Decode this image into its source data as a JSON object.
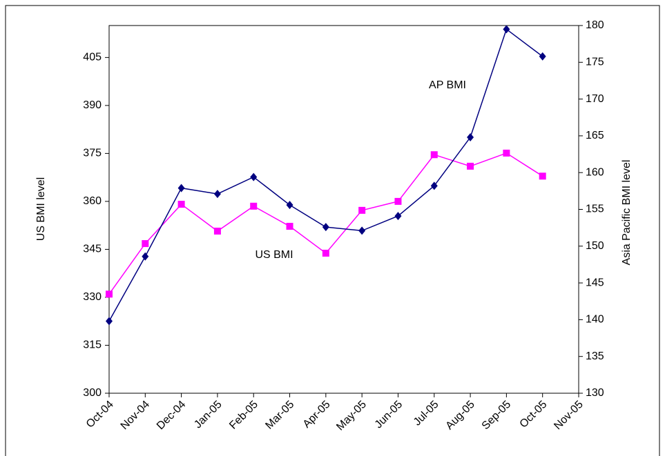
{
  "chart_data": {
    "type": "line",
    "categories": [
      "Oct-04",
      "Nov-04",
      "Dec-04",
      "Jan-05",
      "Feb-05",
      "Mar-05",
      "Apr-05",
      "May-05",
      "Jun-05",
      "Jul-05",
      "Aug-05",
      "Sep-05",
      "Oct-05",
      "Nov-05"
    ],
    "series": [
      {
        "name": "US BMI",
        "color": "#ff00ff",
        "marker": "square",
        "axis": "y",
        "values": [
          331.0,
          346.8,
          359.1,
          350.7,
          358.5,
          352.2,
          343.8,
          357.2,
          360.0,
          374.6,
          371.0,
          375.1,
          367.9,
          null
        ]
      },
      {
        "name": "AP BMI",
        "color": "#000080",
        "marker": "diamond",
        "axis": "y2",
        "values": [
          139.8,
          148.6,
          157.9,
          157.1,
          159.4,
          155.6,
          152.6,
          152.1,
          154.1,
          158.2,
          164.8,
          179.5,
          175.8,
          null
        ]
      }
    ],
    "ylabel": "US BMI level",
    "y2label": "Asia Pacific BMI level",
    "ylim": [
      300,
      415
    ],
    "yticks": [
      300,
      315,
      330,
      345,
      360,
      375,
      390,
      405
    ],
    "y2lim": [
      130,
      180
    ],
    "y2ticks": [
      130,
      135,
      140,
      145,
      150,
      155,
      160,
      165,
      170,
      175,
      180
    ]
  }
}
